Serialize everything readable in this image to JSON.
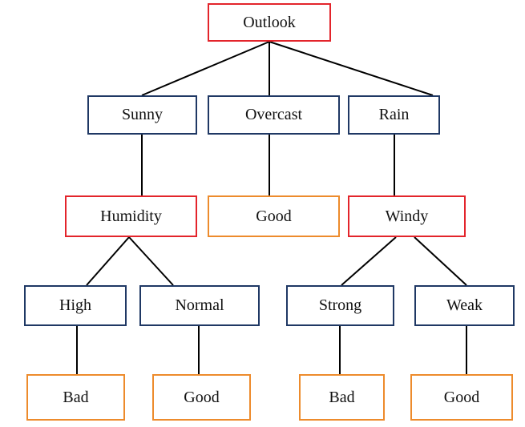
{
  "tree": {
    "root": {
      "label": "Outlook",
      "kind": "attribute"
    },
    "branches": {
      "sunny": {
        "label": "Sunny",
        "kind": "value"
      },
      "overcast": {
        "label": "Overcast",
        "kind": "value"
      },
      "rain": {
        "label": "Rain",
        "kind": "value"
      }
    },
    "level2": {
      "humidity": {
        "label": "Humidity",
        "kind": "attribute"
      },
      "overcast_result": {
        "label": "Good",
        "kind": "leaf"
      },
      "windy": {
        "label": "Windy",
        "kind": "attribute"
      }
    },
    "level3": {
      "high": {
        "label": "High",
        "kind": "value"
      },
      "normal": {
        "label": "Normal",
        "kind": "value"
      },
      "strong": {
        "label": "Strong",
        "kind": "value"
      },
      "weak": {
        "label": "Weak",
        "kind": "value"
      }
    },
    "leaves": {
      "high_result": {
        "label": "Bad",
        "kind": "leaf"
      },
      "normal_result": {
        "label": "Good",
        "kind": "leaf"
      },
      "strong_result": {
        "label": "Bad",
        "kind": "leaf"
      },
      "weak_result": {
        "label": "Good",
        "kind": "leaf"
      }
    }
  },
  "colors": {
    "attribute_border": "#e3242b",
    "value_border": "#1f3864",
    "leaf_border": "#ed8b2c",
    "edge": "#000000"
  }
}
